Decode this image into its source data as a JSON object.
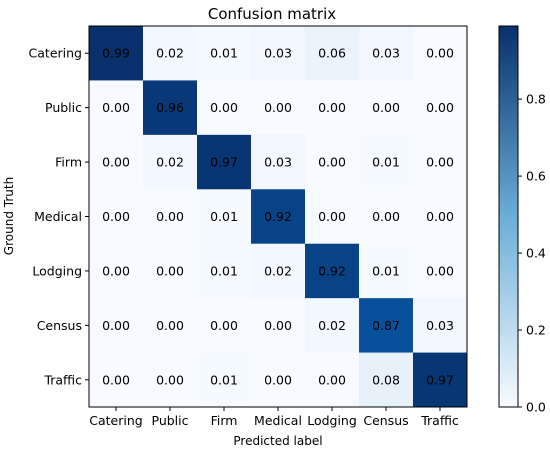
{
  "chart_data": {
    "type": "heatmap",
    "title": "Confusion matrix",
    "xlabel": "Predicted label",
    "ylabel": "Ground Truth",
    "x_categories": [
      "Catering",
      "Public",
      "Firm",
      "Medical",
      "Lodging",
      "Census",
      "Traffic"
    ],
    "y_categories": [
      "Catering",
      "Public",
      "Firm",
      "Medical",
      "Lodging",
      "Census",
      "Traffic"
    ],
    "values": [
      [
        0.99,
        0.02,
        0.01,
        0.03,
        0.06,
        0.03,
        0.0
      ],
      [
        0.0,
        0.96,
        0.0,
        0.0,
        0.0,
        0.0,
        0.0
      ],
      [
        0.0,
        0.02,
        0.97,
        0.03,
        0.0,
        0.01,
        0.0
      ],
      [
        0.0,
        0.0,
        0.01,
        0.92,
        0.0,
        0.0,
        0.0
      ],
      [
        0.0,
        0.0,
        0.01,
        0.02,
        0.92,
        0.01,
        0.0
      ],
      [
        0.0,
        0.0,
        0.0,
        0.0,
        0.02,
        0.87,
        0.03
      ],
      [
        0.0,
        0.0,
        0.01,
        0.0,
        0.0,
        0.08,
        0.97
      ]
    ],
    "value_labels": [
      [
        "0.99",
        "0.02",
        "0.01",
        "0.03",
        "0.06",
        "0.03",
        "0.00"
      ],
      [
        "0.00",
        "0.96",
        "0.00",
        "0.00",
        "0.00",
        "0.00",
        "0.00"
      ],
      [
        "0.00",
        "0.02",
        "0.97",
        "0.03",
        "0.00",
        "0.01",
        "0.00"
      ],
      [
        "0.00",
        "0.00",
        "0.01",
        "0.92",
        "0.00",
        "0.00",
        "0.00"
      ],
      [
        "0.00",
        "0.00",
        "0.01",
        "0.02",
        "0.92",
        "0.01",
        "0.00"
      ],
      [
        "0.00",
        "0.00",
        "0.00",
        "0.00",
        "0.02",
        "0.87",
        "0.03"
      ],
      [
        "0.00",
        "0.00",
        "0.01",
        "0.00",
        "0.00",
        "0.08",
        "0.97"
      ]
    ],
    "colormap": "Blues",
    "colormap_light": "#f7fbff",
    "colormap_dark": "#08306b",
    "colorbar": {
      "range": [
        0.0,
        0.99
      ],
      "ticks": [
        0.0,
        0.2,
        0.4,
        0.6,
        0.8
      ],
      "tick_labels": [
        "0.0",
        "0.2",
        "0.4",
        "0.6",
        "0.8"
      ]
    },
    "grid": false
  }
}
